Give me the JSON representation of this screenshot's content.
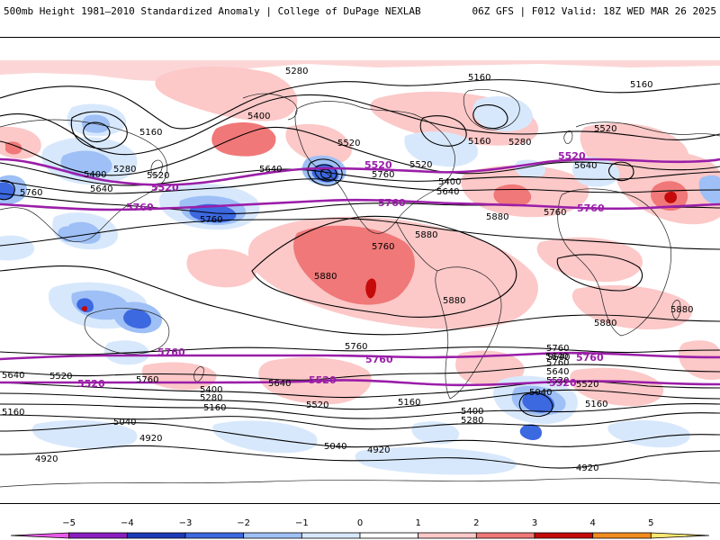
{
  "header": {
    "title_left": "500mb Height 1981–2010 Standardized Anomaly | College of DuPage NEXLAB",
    "title_right": "06Z GFS | F012 Valid: 18Z WED MAR 26 2025"
  },
  "colors": {
    "contour": "#000000",
    "highlight_contour": "#9a1ea8",
    "land_outline": "#222222"
  },
  "anomaly_fields": {
    "positive": [
      {
        "name": "central-pacific-ridge",
        "level": 2
      },
      {
        "name": "north-pacific-ridge",
        "level": 1
      },
      {
        "name": "north-atlantic-ridge",
        "level": 2
      },
      {
        "name": "middle-east-ridge",
        "level": 2
      },
      {
        "name": "arctic-ridge",
        "level": 1
      },
      {
        "name": "south-pacific-ridge",
        "level": 1
      },
      {
        "name": "south-indian-ridge",
        "level": 1
      }
    ],
    "negative": [
      {
        "name": "north-pacific-trough",
        "level": -3
      },
      {
        "name": "japan-trough",
        "level": -2
      },
      {
        "name": "california-low",
        "level": -3
      },
      {
        "name": "hudson-trough",
        "level": -1
      },
      {
        "name": "south-atlantic-trough",
        "level": -3
      },
      {
        "name": "australia-trough",
        "level": -2
      },
      {
        "name": "southern-ocean-trough",
        "level": -1
      }
    ]
  },
  "contour_labels": [
    {
      "id": "nh-5280-a",
      "text": "5280"
    },
    {
      "id": "nh-5160-a",
      "text": "5160"
    },
    {
      "id": "nh-5400-a",
      "text": "5400"
    },
    {
      "id": "nh-5160-b",
      "text": "5160"
    },
    {
      "id": "nh-5520-a",
      "text": "5520"
    },
    {
      "id": "nh-5280-b",
      "text": "5280"
    },
    {
      "id": "nh-5520-b",
      "text": "5520"
    },
    {
      "id": "nh-5400-b",
      "text": "5400"
    },
    {
      "id": "nh-5640-a",
      "text": "5640"
    },
    {
      "id": "nh-5640-b",
      "text": "5640"
    },
    {
      "id": "nh-5760-a",
      "text": "5760"
    },
    {
      "id": "nh-5760-b",
      "text": "5760"
    },
    {
      "id": "nh-5280-c",
      "text": "5280"
    },
    {
      "id": "nh-5160-c",
      "text": "5160"
    },
    {
      "id": "nh-5400-c",
      "text": "5400"
    },
    {
      "id": "nh-5640-c",
      "text": "5640"
    },
    {
      "id": "nh-5760-c",
      "text": "5760"
    },
    {
      "id": "nh-5880-a",
      "text": "5880"
    },
    {
      "id": "nh-5520-c",
      "text": "5520"
    },
    {
      "id": "nh-5640-d",
      "text": "5640"
    },
    {
      "id": "nh-5760-d",
      "text": "5760"
    },
    {
      "id": "nh-5520-d",
      "text": "5520"
    },
    {
      "id": "nh-5160-d",
      "text": "5160"
    },
    {
      "id": "trop-5880-a",
      "text": "5880"
    },
    {
      "id": "trop-5880-b",
      "text": "5880"
    },
    {
      "id": "trop-5880-c",
      "text": "5880"
    },
    {
      "id": "trop-5880-d",
      "text": "5880"
    },
    {
      "id": "trop-5880-e",
      "text": "5880"
    },
    {
      "id": "sh-5760-a",
      "text": "5760"
    },
    {
      "id": "sh-5760-b",
      "text": "5760"
    },
    {
      "id": "sh-5640-a",
      "text": "5640"
    },
    {
      "id": "sh-5640-b",
      "text": "5640"
    },
    {
      "id": "sh-5520-a",
      "text": "5520"
    },
    {
      "id": "sh-5760-c",
      "text": "5760"
    },
    {
      "id": "sh-5400-a",
      "text": "5400"
    },
    {
      "id": "sh-5280-a",
      "text": "5280"
    },
    {
      "id": "sh-5160-a",
      "text": "5160"
    },
    {
      "id": "sh-5640-c",
      "text": "5640"
    },
    {
      "id": "sh-5520-b",
      "text": "5520"
    },
    {
      "id": "sh-5160-b",
      "text": "5160"
    },
    {
      "id": "sh-5040-a",
      "text": "5040"
    },
    {
      "id": "sh-4920-a",
      "text": "4920"
    },
    {
      "id": "sh-4920-b",
      "text": "4920"
    },
    {
      "id": "sh-5040-b",
      "text": "5040"
    },
    {
      "id": "sh-4920-c",
      "text": "4920"
    },
    {
      "id": "sh-5160-c",
      "text": "5160"
    },
    {
      "id": "sh-5400-b",
      "text": "5400"
    },
    {
      "id": "sh-5280-b",
      "text": "5280"
    },
    {
      "id": "sh-5040-c",
      "text": "5040"
    },
    {
      "id": "sh-5760-d",
      "text": "5760"
    },
    {
      "id": "sh-5640-d",
      "text": "5640"
    },
    {
      "id": "sh-5520-c",
      "text": "5520"
    },
    {
      "id": "sh-5160-d",
      "text": "5160"
    },
    {
      "id": "sh-4920-d",
      "text": "4920"
    },
    {
      "id": "sh-5640-e",
      "text": "5640"
    },
    {
      "id": "sh-5760-e",
      "text": "5760"
    },
    {
      "id": "sh-5520-d",
      "text": "5520"
    }
  ],
  "highlight_labels": [
    {
      "id": "hl-nh-5520-a",
      "text": "5520"
    },
    {
      "id": "hl-nh-5520-b",
      "text": "5520"
    },
    {
      "id": "hl-nh-5520-c",
      "text": "5520"
    },
    {
      "id": "hl-nh-5760-a",
      "text": "5760"
    },
    {
      "id": "hl-nh-5760-b",
      "text": "5760"
    },
    {
      "id": "hl-nh-5760-c",
      "text": "5760"
    },
    {
      "id": "hl-sh-5760-a",
      "text": "5760"
    },
    {
      "id": "hl-sh-5760-b",
      "text": "5760"
    },
    {
      "id": "hl-sh-5760-c",
      "text": "5760"
    },
    {
      "id": "hl-sh-5520-a",
      "text": "5520"
    },
    {
      "id": "hl-sh-5520-b",
      "text": "5520"
    },
    {
      "id": "hl-sh-5520-c",
      "text": "5520"
    }
  ],
  "colorbar": {
    "ticks": [
      "−5",
      "−4",
      "−3",
      "−2",
      "−1",
      "0",
      "1",
      "2",
      "3",
      "4",
      "5"
    ],
    "segments": [
      {
        "from": -6,
        "to": -5,
        "color": "#e85ae8"
      },
      {
        "from": -5,
        "to": -4,
        "color": "#8a1ec0"
      },
      {
        "from": -4,
        "to": -3,
        "color": "#1c3ab8"
      },
      {
        "from": -3,
        "to": -2,
        "color": "#3c68e0"
      },
      {
        "from": -2,
        "to": -1,
        "color": "#9ec0f6"
      },
      {
        "from": -1,
        "to": 0,
        "color": "#d8e8fc"
      },
      {
        "from": 0,
        "to": 1,
        "color": "#ffffff"
      },
      {
        "from": 1,
        "to": 2,
        "color": "#fcc8c8"
      },
      {
        "from": 2,
        "to": 3,
        "color": "#f07878"
      },
      {
        "from": 3,
        "to": 4,
        "color": "#c40a0a"
      },
      {
        "from": 4,
        "to": 5,
        "color": "#f28c1e"
      },
      {
        "from": 5,
        "to": 6,
        "color": "#ffe870"
      }
    ]
  }
}
